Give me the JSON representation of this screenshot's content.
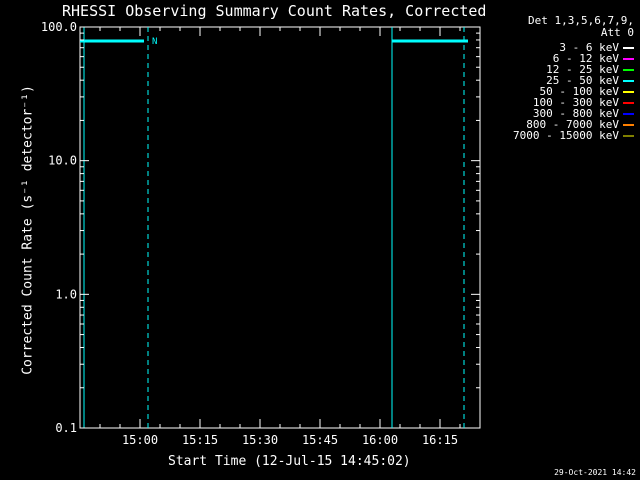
{
  "header": {
    "title": "RHESSI Observing Summary Count Rates, Corrected",
    "det_line": "Det 1,3,5,6,7,9,",
    "att_line": "Att 0",
    "timestamp": "29-Oct-2021 14:42"
  },
  "chart_data": {
    "type": "line",
    "title": "RHESSI Observing Summary Count Rates, Corrected",
    "xlabel": "Start Time (12-Jul-15 14:45:02)",
    "ylabel": "Corrected Count Rate (s⁻¹ detector⁻¹)",
    "y_scale": "log",
    "ylim": [
      0.1,
      100
    ],
    "y_ticks": [
      {
        "value": 0.1,
        "label": "0.1"
      },
      {
        "value": 1.0,
        "label": "1.0"
      },
      {
        "value": 10,
        "label": "10.0"
      },
      {
        "value": 100,
        "label": "100.0"
      }
    ],
    "xlim": [
      "14:45",
      "16:25"
    ],
    "x_ticks": [
      "15:00",
      "15:15",
      "15:30",
      "15:45",
      "16:00",
      "16:15"
    ],
    "legend_position": "outside-right",
    "grid": false,
    "x": [
      "14:45",
      "14:47",
      "14:49",
      "14:51",
      "14:53",
      "14:55",
      "14:57",
      "14:59",
      "15:01",
      "15:03",
      "15:05",
      "15:07",
      "15:09",
      "15:11",
      "15:13",
      "15:15",
      "15:17",
      "15:19",
      "15:21",
      "15:23",
      "15:25",
      "15:27",
      "15:29",
      "15:31",
      "15:33",
      "15:35",
      "15:37",
      "15:39",
      "15:41",
      "15:43",
      "15:45",
      "15:47",
      "15:49",
      "15:51",
      "15:53",
      "15:55",
      "15:57",
      "15:59",
      "16:01",
      "16:03",
      "16:05",
      "16:07",
      "16:09",
      "16:11",
      "16:13",
      "16:15",
      "16:17",
      "16:19",
      "16:21"
    ],
    "series": [
      {
        "name": "3 - 6 keV",
        "color": "#ffffff",
        "values": [
          null,
          null,
          null,
          null,
          null,
          null,
          null,
          null,
          null,
          null,
          null,
          null,
          null,
          null,
          null,
          null,
          null,
          null,
          null,
          null,
          null,
          null,
          null,
          null,
          null,
          null,
          null,
          null,
          null,
          null,
          null,
          null,
          null,
          null,
          null,
          null,
          null,
          null,
          null,
          null,
          null,
          null,
          null,
          null,
          null,
          null,
          null,
          null,
          null
        ]
      },
      {
        "name": "6 - 12 keV",
        "color": "#ff00ff",
        "values": [
          null,
          null,
          null,
          null,
          null,
          null,
          null,
          null,
          null,
          null,
          null,
          null,
          null,
          null,
          null,
          null,
          null,
          null,
          null,
          null,
          null,
          null,
          null,
          null,
          null,
          null,
          null,
          null,
          null,
          null,
          null,
          null,
          null,
          null,
          null,
          null,
          null,
          null,
          null,
          null,
          null,
          null,
          null,
          null,
          null,
          null,
          null,
          null,
          null
        ]
      },
      {
        "name": "12 - 25 keV",
        "color": "#00ff00",
        "values": [
          null,
          null,
          null,
          null,
          null,
          null,
          null,
          null,
          null,
          null,
          null,
          null,
          null,
          null,
          null,
          null,
          null,
          null,
          null,
          null,
          null,
          null,
          null,
          null,
          null,
          null,
          null,
          null,
          null,
          null,
          null,
          null,
          null,
          null,
          null,
          null,
          null,
          null,
          null,
          null,
          null,
          null,
          null,
          null,
          null,
          null,
          null,
          null,
          null
        ]
      },
      {
        "name": "25 - 50 keV",
        "color": "#00ffff",
        "values": [
          null,
          null,
          null,
          null,
          null,
          null,
          null,
          null,
          null,
          null,
          null,
          null,
          null,
          null,
          null,
          null,
          null,
          null,
          null,
          null,
          null,
          null,
          null,
          null,
          null,
          null,
          null,
          null,
          null,
          null,
          null,
          null,
          null,
          null,
          null,
          null,
          null,
          null,
          null,
          null,
          null,
          null,
          null,
          null,
          null,
          null,
          null,
          null,
          null
        ]
      },
      {
        "name": "50 - 100 keV",
        "color": "#ffff00",
        "values": [
          null,
          null,
          null,
          null,
          null,
          null,
          null,
          null,
          null,
          null,
          null,
          null,
          null,
          null,
          null,
          null,
          null,
          null,
          null,
          null,
          null,
          null,
          null,
          null,
          null,
          null,
          null,
          null,
          null,
          null,
          null,
          null,
          null,
          null,
          null,
          null,
          null,
          null,
          null,
          null,
          null,
          null,
          null,
          null,
          null,
          null,
          null,
          null,
          null
        ]
      },
      {
        "name": "100 - 300 keV",
        "color": "#ff0000",
        "values": [
          null,
          null,
          null,
          null,
          null,
          null,
          null,
          null,
          null,
          null,
          null,
          null,
          null,
          null,
          null,
          null,
          null,
          null,
          null,
          null,
          null,
          null,
          null,
          null,
          null,
          null,
          null,
          null,
          null,
          null,
          null,
          null,
          null,
          null,
          null,
          null,
          null,
          null,
          null,
          null,
          null,
          null,
          null,
          null,
          null,
          null,
          null,
          null,
          null
        ]
      },
      {
        "name": "300 - 800 keV",
        "color": "#0000ff",
        "values": [
          null,
          null,
          null,
          null,
          null,
          null,
          null,
          null,
          null,
          null,
          null,
          null,
          null,
          null,
          null,
          null,
          null,
          null,
          null,
          null,
          null,
          null,
          null,
          null,
          null,
          null,
          null,
          null,
          null,
          null,
          null,
          null,
          null,
          null,
          null,
          null,
          null,
          null,
          null,
          null,
          null,
          null,
          null,
          null,
          null,
          null,
          null,
          null,
          null
        ]
      },
      {
        "name": "800 - 7000 keV",
        "color": "#ff8000",
        "values": [
          null,
          null,
          null,
          null,
          null,
          null,
          null,
          null,
          null,
          null,
          null,
          null,
          null,
          null,
          null,
          null,
          null,
          null,
          null,
          null,
          null,
          null,
          null,
          null,
          null,
          null,
          null,
          null,
          null,
          null,
          null,
          null,
          null,
          null,
          null,
          null,
          null,
          null,
          null,
          null,
          null,
          null,
          null,
          null,
          null,
          null,
          null,
          null,
          null
        ]
      },
      {
        "name": "7000 - 15000 keV",
        "color": "#808000",
        "values": [
          null,
          null,
          null,
          null,
          null,
          null,
          null,
          null,
          null,
          null,
          null,
          null,
          null,
          null,
          null,
          null,
          null,
          null,
          null,
          null,
          null,
          null,
          null,
          null,
          null,
          null,
          null,
          null,
          null,
          null,
          null,
          null,
          null,
          null,
          null,
          null,
          null,
          null,
          null,
          null,
          null,
          null,
          null,
          null,
          null,
          null,
          null,
          null,
          null
        ]
      }
    ],
    "annotations": {
      "flag_bars": [
        {
          "start": "14:45",
          "end": "15:01",
          "label": "N"
        },
        {
          "start": "16:03",
          "end": "16:22",
          "label": ""
        }
      ],
      "vertical_markers": [
        {
          "time": "14:46",
          "style": "solid"
        },
        {
          "time": "15:02",
          "style": "dashed"
        },
        {
          "time": "16:03",
          "style": "solid"
        },
        {
          "time": "16:21",
          "style": "dashed"
        }
      ],
      "marker_color": "#00ffff"
    }
  }
}
